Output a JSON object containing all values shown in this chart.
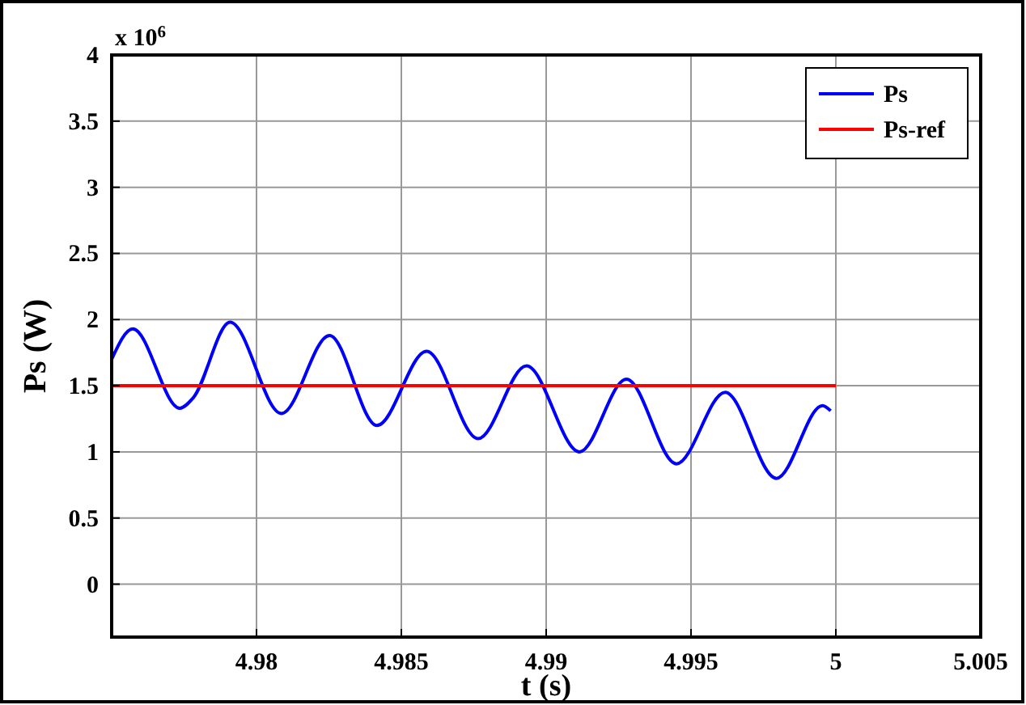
{
  "chart_data": {
    "type": "line",
    "xlabel": "t (s)",
    "ylabel": "Ps (W)",
    "annotations": [
      "x 10$^{6}$"
    ],
    "xlim": [
      4.975,
      5.005
    ],
    "xticks": [
      4.98,
      4.985,
      4.99,
      4.995,
      5,
      5.005
    ],
    "ylim": [
      -0.4,
      4
    ],
    "yticks": [
      0,
      0.5,
      1,
      1.5,
      2,
      2.5,
      3,
      3.5,
      4
    ],
    "grid": true,
    "legend": "top right",
    "line_style": "solid",
    "marker": "none",
    "series": [
      {
        "name": "Ps",
        "color": "#0000ff",
        "x": [
          4.975,
          4.97573,
          4.97735,
          4.97782,
          4.97909,
          4.98086,
          4.98252,
          4.98416,
          4.98587,
          4.98765,
          4.98932,
          4.99115,
          4.99277,
          4.9945,
          4.99618,
          4.99795,
          4.99954,
          4.99982
        ],
        "values": [
          1.7,
          1.93,
          1.33,
          1.41,
          1.98,
          1.29,
          1.88,
          1.2,
          1.76,
          1.1,
          1.65,
          1.0,
          1.55,
          0.91,
          1.45,
          0.8,
          1.35,
          1.31
        ]
      },
      {
        "name": "Ps-ref",
        "color": "#ff0000",
        "x": [
          4.975,
          5
        ],
        "values": [
          1.5,
          1.5
        ]
      }
    ]
  }
}
